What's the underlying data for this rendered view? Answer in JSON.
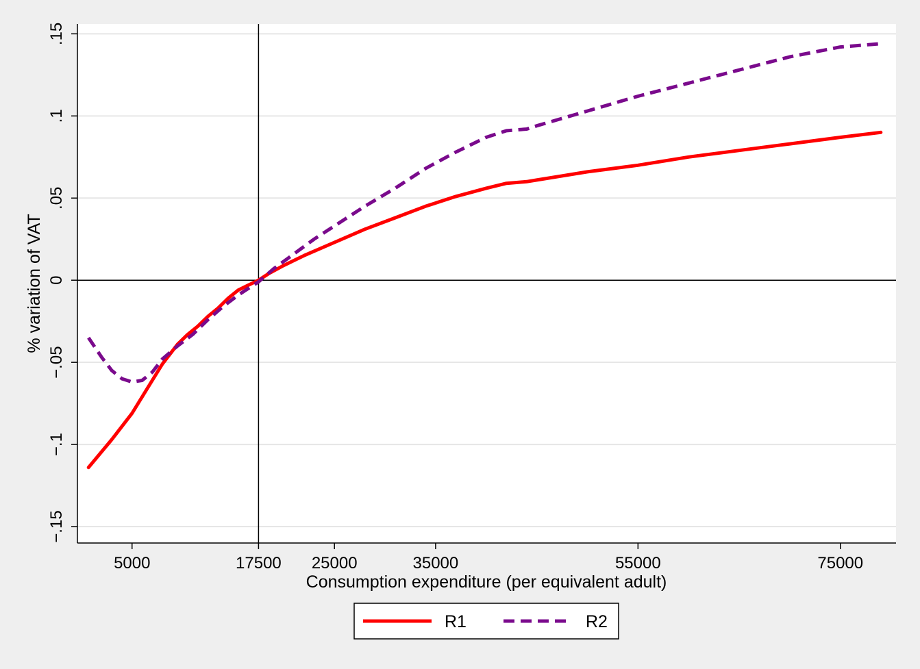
{
  "chart_data": {
    "type": "line",
    "title": "",
    "xlabel": "Consumption expenditure (per equivalent adult)",
    "ylabel": "% variation of VAT",
    "xlim": [
      -400,
      80500
    ],
    "ylim": [
      -0.16,
      0.156
    ],
    "x_ticks": [
      5000,
      17500,
      25000,
      35000,
      55000,
      75000
    ],
    "x_tick_labels": [
      "5000",
      "17500",
      "25000",
      "35000",
      "55000",
      "75000"
    ],
    "y_ticks": [
      -0.15,
      -0.1,
      -0.05,
      0,
      0.05,
      0.1,
      0.15
    ],
    "y_tick_labels": [
      "−.15",
      "−.1",
      "−.05",
      "0",
      ".05",
      ".1",
      ".15"
    ],
    "reference_lines": {
      "x": 17500,
      "y": 0
    },
    "grid": "horizontal",
    "legend_position": "bottom",
    "series": [
      {
        "name": "R1",
        "color": "#ff0000",
        "dash": "solid",
        "x": [
          700,
          3000,
          5000,
          6500,
          8000,
          9500,
          10500,
          11500,
          12500,
          13500,
          14500,
          15500,
          16500,
          17500,
          18500,
          20000,
          22000,
          25000,
          28000,
          31000,
          34000,
          37000,
          40000,
          42000,
          44000,
          45000,
          50000,
          55000,
          60000,
          65000,
          70000,
          75000,
          79000
        ],
        "y": [
          -0.114,
          -0.097,
          -0.081,
          -0.066,
          -0.051,
          -0.039,
          -0.033,
          -0.028,
          -0.022,
          -0.017,
          -0.011,
          -0.006,
          -0.003,
          0.0,
          0.004,
          0.009,
          0.015,
          0.023,
          0.031,
          0.038,
          0.045,
          0.051,
          0.056,
          0.059,
          0.06,
          0.061,
          0.066,
          0.07,
          0.075,
          0.079,
          0.083,
          0.087,
          0.09
        ]
      },
      {
        "name": "R2",
        "color": "#7a0a8c",
        "dash": "dashed",
        "x": [
          700,
          2000,
          3000,
          4000,
          5000,
          6000,
          7000,
          8000,
          9500,
          11000,
          12500,
          14000,
          15500,
          16500,
          17500,
          19000,
          21000,
          23000,
          25000,
          28000,
          31000,
          34000,
          37000,
          40000,
          42000,
          44000,
          45000,
          50000,
          55000,
          60000,
          65000,
          70000,
          75000,
          79000
        ],
        "y": [
          -0.035,
          -0.047,
          -0.055,
          -0.06,
          -0.062,
          -0.061,
          -0.056,
          -0.048,
          -0.04,
          -0.033,
          -0.024,
          -0.016,
          -0.009,
          -0.005,
          -0.001,
          0.007,
          0.016,
          0.025,
          0.033,
          0.045,
          0.056,
          0.068,
          0.078,
          0.087,
          0.091,
          0.092,
          0.094,
          0.103,
          0.112,
          0.12,
          0.128,
          0.136,
          0.142,
          0.144
        ]
      }
    ]
  }
}
